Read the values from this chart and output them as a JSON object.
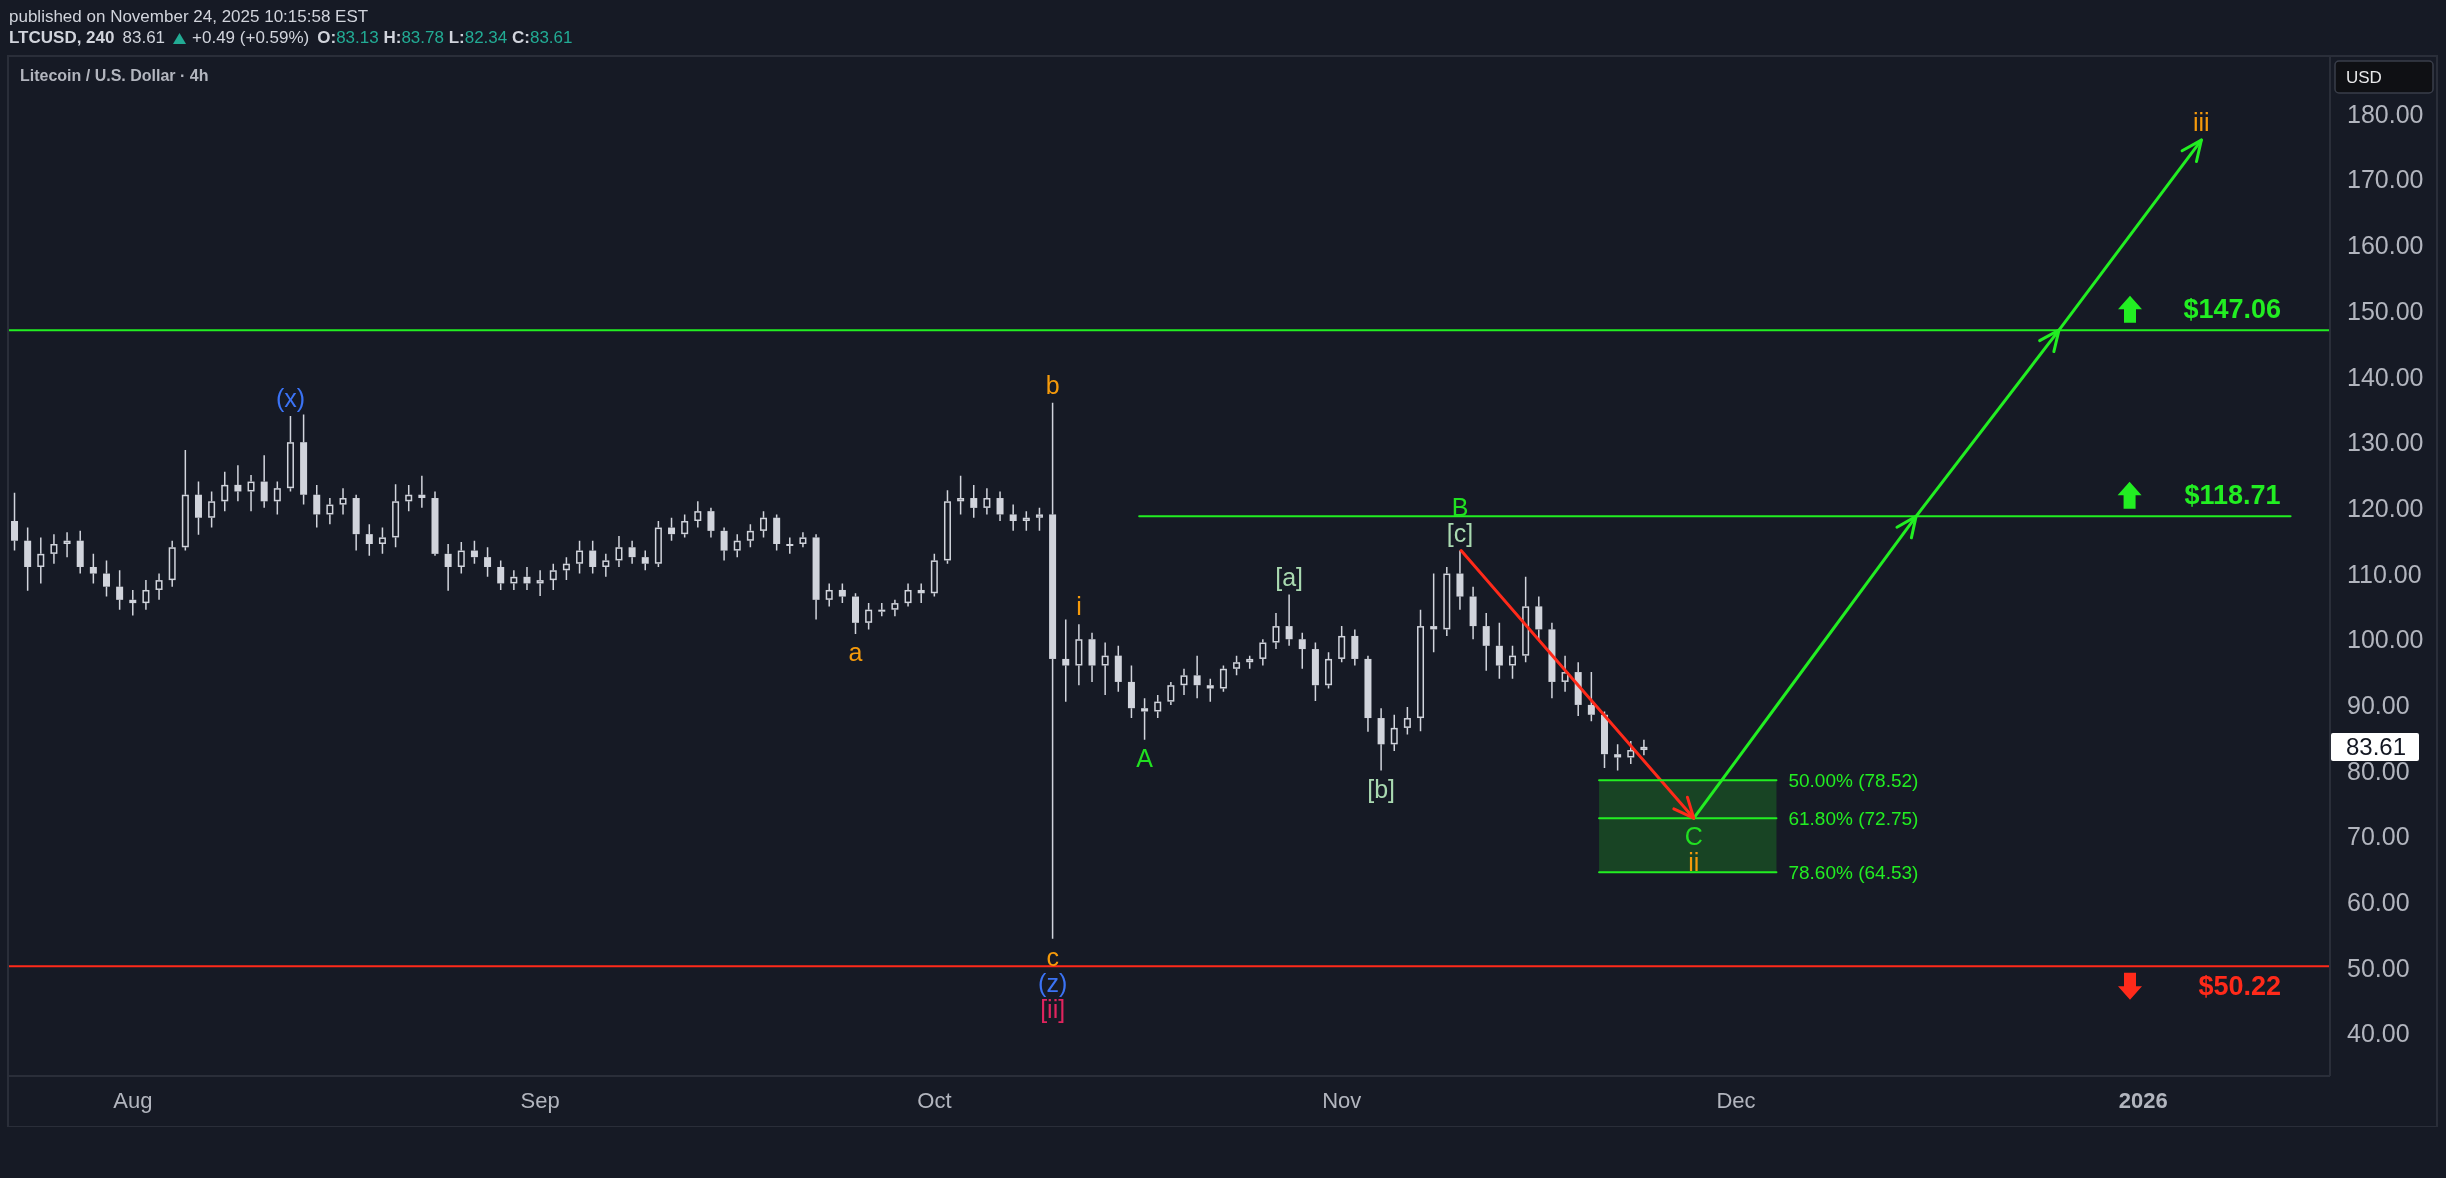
{
  "chart_data": {
    "type": "candlestick",
    "title": "Litecoin / U.S. Dollar · 4h",
    "subtitle": "published on November 24, 2025 10:15:58 EST",
    "ylabel": "USD",
    "color": "#d1d4dc",
    "x": [
      "2025-07-23",
      "2025-07-24",
      "2025-07-25",
      "2025-07-26",
      "2025-07-27",
      "2025-07-28",
      "2025-07-29",
      "2025-07-30",
      "2025-07-31",
      "2025-08-01",
      "2025-08-02",
      "2025-08-03",
      "2025-08-04",
      "2025-08-05",
      "2025-08-06",
      "2025-08-07",
      "2025-08-08",
      "2025-08-09",
      "2025-08-10",
      "2025-08-11",
      "2025-08-12",
      "2025-08-13",
      "2025-08-14",
      "2025-08-15",
      "2025-08-16",
      "2025-08-17",
      "2025-08-18",
      "2025-08-19",
      "2025-08-20",
      "2025-08-21",
      "2025-08-22",
      "2025-08-23",
      "2025-08-24",
      "2025-08-25",
      "2025-08-26",
      "2025-08-27",
      "2025-08-28",
      "2025-08-29",
      "2025-08-30",
      "2025-08-31",
      "2025-09-01",
      "2025-09-02",
      "2025-09-03",
      "2025-09-04",
      "2025-09-05",
      "2025-09-06",
      "2025-09-07",
      "2025-09-08",
      "2025-09-09",
      "2025-09-10",
      "2025-09-11",
      "2025-09-12",
      "2025-09-13",
      "2025-09-14",
      "2025-09-15",
      "2025-09-16",
      "2025-09-17",
      "2025-09-18",
      "2025-09-19",
      "2025-09-20",
      "2025-09-21",
      "2025-09-22",
      "2025-09-23",
      "2025-09-24",
      "2025-09-25",
      "2025-09-26",
      "2025-09-27",
      "2025-09-28",
      "2025-09-29",
      "2025-09-30",
      "2025-10-01",
      "2025-10-02",
      "2025-10-03",
      "2025-10-04",
      "2025-10-05",
      "2025-10-06",
      "2025-10-07",
      "2025-10-08",
      "2025-10-09",
      "2025-10-10",
      "2025-10-11",
      "2025-10-12",
      "2025-10-13",
      "2025-10-14",
      "2025-10-15",
      "2025-10-16",
      "2025-10-17",
      "2025-10-18",
      "2025-10-19",
      "2025-10-20",
      "2025-10-21",
      "2025-10-22",
      "2025-10-23",
      "2025-10-24",
      "2025-10-25",
      "2025-10-26",
      "2025-10-27",
      "2025-10-28",
      "2025-10-29",
      "2025-10-30",
      "2025-10-31",
      "2025-11-01",
      "2025-11-02",
      "2025-11-03",
      "2025-11-04",
      "2025-11-05",
      "2025-11-06",
      "2025-11-07",
      "2025-11-08",
      "2025-11-09",
      "2025-11-10",
      "2025-11-11",
      "2025-11-12",
      "2025-11-13",
      "2025-11-14",
      "2025-11-15",
      "2025-11-16",
      "2025-11-17",
      "2025-11-18",
      "2025-11-19",
      "2025-11-20",
      "2025-11-21",
      "2025-11-22",
      "2025-11-23",
      "2025-11-24"
    ],
    "ohlc": [
      [
        118,
        122.3,
        113.5,
        115
      ],
      [
        115,
        117,
        107.4,
        111
      ],
      [
        111,
        115.5,
        108.5,
        113
      ],
      [
        113,
        116,
        111.5,
        114.5
      ],
      [
        114.5,
        116.3,
        112.5,
        115
      ],
      [
        115,
        116.5,
        110,
        111
      ],
      [
        111,
        113,
        108.5,
        110
      ],
      [
        110,
        112,
        106.5,
        108
      ],
      [
        108,
        110.5,
        104.5,
        106
      ],
      [
        106,
        107.5,
        103.6,
        105.5
      ],
      [
        105.5,
        109,
        104.5,
        107.5
      ],
      [
        107.5,
        110,
        106,
        109
      ],
      [
        109,
        115,
        108,
        114
      ],
      [
        114,
        128.8,
        113.5,
        122
      ],
      [
        122,
        124,
        115.9,
        118.5
      ],
      [
        118.5,
        122.5,
        117,
        121
      ],
      [
        121,
        125.5,
        119.5,
        123.5
      ],
      [
        123.5,
        126.5,
        121,
        122.5
      ],
      [
        122.5,
        125,
        119.5,
        124
      ],
      [
        124,
        128,
        120,
        121
      ],
      [
        121,
        124,
        119,
        123
      ],
      [
        123,
        134,
        122.5,
        130
      ],
      [
        130,
        134.2,
        120.5,
        122
      ],
      [
        122,
        123.5,
        117,
        119
      ],
      [
        119,
        121.5,
        117.5,
        120.5
      ],
      [
        120.5,
        123,
        119,
        121.5
      ],
      [
        121.5,
        122,
        113.5,
        116
      ],
      [
        116,
        117.5,
        112.7,
        114.5
      ],
      [
        114.5,
        117,
        113,
        115.5
      ],
      [
        115.5,
        123.6,
        114,
        121
      ],
      [
        121,
        123.5,
        119.5,
        122
      ],
      [
        122,
        124.9,
        120,
        121.5
      ],
      [
        121.5,
        122.5,
        112.7,
        113
      ],
      [
        113,
        114.5,
        107.4,
        111
      ],
      [
        111,
        114.8,
        110,
        113.5
      ],
      [
        113.5,
        115,
        111.5,
        112.5
      ],
      [
        112.5,
        114,
        109.5,
        111
      ],
      [
        111,
        112,
        107.5,
        108.5
      ],
      [
        108.5,
        110.5,
        107.5,
        109.5
      ],
      [
        109.5,
        111,
        107.5,
        108.5
      ],
      [
        108.5,
        110.5,
        106.6,
        109
      ],
      [
        109,
        111.5,
        107.5,
        110.5
      ],
      [
        110.5,
        112.5,
        109,
        111.5
      ],
      [
        111.5,
        115,
        110,
        113.5
      ],
      [
        113.5,
        115,
        110,
        111
      ],
      [
        111,
        113,
        109.5,
        112
      ],
      [
        112,
        115.7,
        111,
        114
      ],
      [
        114,
        115,
        111.5,
        112.5
      ],
      [
        112.5,
        113.5,
        110.5,
        111.5
      ],
      [
        111.5,
        118,
        111,
        117
      ],
      [
        117,
        118.5,
        115,
        116
      ],
      [
        116,
        119,
        115.5,
        118
      ],
      [
        118,
        121,
        117,
        119.5
      ],
      [
        119.5,
        120,
        115.5,
        116.5
      ],
      [
        116.5,
        117,
        112,
        113.5
      ],
      [
        113.5,
        116,
        112.5,
        115
      ],
      [
        115,
        117.5,
        114,
        116.5
      ],
      [
        116.5,
        119.5,
        115.5,
        118.5
      ],
      [
        118.5,
        119,
        113.5,
        114.5
      ],
      [
        114.5,
        115.5,
        113,
        114.5
      ],
      [
        114.5,
        116.3,
        114,
        115.5
      ],
      [
        115.5,
        116,
        103,
        106
      ],
      [
        106,
        108.5,
        105,
        107.5
      ],
      [
        107.5,
        108.5,
        105.5,
        106.5
      ],
      [
        106.5,
        107,
        100.8,
        102.5
      ],
      [
        102.5,
        105.5,
        101.5,
        104.5
      ],
      [
        104.5,
        105.5,
        103.5,
        104.5
      ],
      [
        104.5,
        106,
        103.5,
        105.5
      ],
      [
        105.5,
        108.5,
        105,
        107.5
      ],
      [
        107.5,
        108.5,
        105.5,
        107
      ],
      [
        107,
        113,
        106.5,
        112
      ],
      [
        112,
        122.7,
        111.5,
        121
      ],
      [
        121,
        124.9,
        119,
        121.5
      ],
      [
        121.5,
        123.5,
        118.5,
        120
      ],
      [
        120,
        123,
        119,
        121.5
      ],
      [
        121.5,
        122.5,
        118,
        119
      ],
      [
        119,
        120.5,
        116.5,
        118
      ],
      [
        118,
        119.5,
        116.5,
        118.5
      ],
      [
        118.5,
        120,
        116.5,
        119
      ],
      [
        119,
        136,
        54.4,
        97
      ],
      [
        97,
        103,
        90.5,
        96
      ],
      [
        96,
        102.3,
        93,
        100
      ],
      [
        100,
        101,
        93.5,
        96
      ],
      [
        96,
        99.5,
        91.5,
        97.5
      ],
      [
        97.5,
        99,
        92,
        93.5
      ],
      [
        93.5,
        96,
        88,
        89.5
      ],
      [
        89.5,
        91,
        84.7,
        89
      ],
      [
        89,
        91.5,
        88,
        90.5
      ],
      [
        90.5,
        93.5,
        90,
        93
      ],
      [
        93,
        95.5,
        91.5,
        94.5
      ],
      [
        94.5,
        97.5,
        91,
        93
      ],
      [
        93,
        94,
        90.5,
        92.5
      ],
      [
        92.5,
        96,
        92,
        95.5
      ],
      [
        95.5,
        97.5,
        94.5,
        96.5
      ],
      [
        96.5,
        97.5,
        95.5,
        97
      ],
      [
        97,
        100,
        96,
        99.5
      ],
      [
        99.5,
        104,
        98.5,
        102
      ],
      [
        102,
        106.8,
        99,
        100
      ],
      [
        100,
        101,
        95.5,
        98.5
      ],
      [
        98.5,
        99.5,
        90.6,
        93
      ],
      [
        93,
        98,
        92.5,
        97
      ],
      [
        97,
        102,
        96.5,
        100.5
      ],
      [
        100.5,
        101.5,
        96,
        97
      ],
      [
        97,
        97.5,
        85.9,
        88
      ],
      [
        88,
        89.5,
        80,
        84
      ],
      [
        84,
        88.5,
        83,
        86.5
      ],
      [
        86.5,
        89.7,
        85.5,
        88
      ],
      [
        88,
        104.5,
        86,
        102
      ],
      [
        102,
        110,
        98,
        101.5
      ],
      [
        101.5,
        111,
        100.5,
        110
      ],
      [
        110,
        113.5,
        104.5,
        106.5
      ],
      [
        106.5,
        108,
        100,
        102
      ],
      [
        102,
        104,
        95.2,
        99
      ],
      [
        99,
        102.5,
        94,
        96
      ],
      [
        96,
        99,
        94,
        97.5
      ],
      [
        97.5,
        109.5,
        96.5,
        105
      ],
      [
        105,
        106.5,
        100,
        101.5
      ],
      [
        101.5,
        102.5,
        91,
        93.5
      ],
      [
        93.5,
        97.5,
        92,
        95
      ],
      [
        95,
        96.5,
        88.3,
        90
      ],
      [
        90,
        95,
        87.5,
        88.5
      ],
      [
        88.5,
        89,
        80.4,
        82.5
      ],
      [
        82.5,
        84,
        80,
        82
      ],
      [
        82,
        84.5,
        81,
        83.13
      ],
      [
        83.13,
        84.7,
        82.34,
        83.61
      ]
    ],
    "series": [
      {
        "type": "line",
        "color": "#ff2a1a",
        "x": [
          "2025-11-10T02:00",
          "2025-11-27T19:00"
        ],
        "values": [
          113.5,
          72.75
        ]
      },
      {
        "type": "line",
        "color": "#22ee22",
        "x": [
          "2025-11-27T19:00",
          "2025-12-14T17:00",
          "2025-12-25T14:00",
          "2026-01-05T10:00"
        ],
        "values": [
          72.75,
          118.71,
          147.06,
          176
        ]
      },
      {
        "type": "line",
        "name": "$118.71",
        "color": "#22ee22",
        "x": [
          "2025-10-16T14:00",
          "2026-01-12T05:00"
        ],
        "values": [
          118.71,
          118.71
        ]
      },
      {
        "type": "line",
        "name": "50.00% (78.52)",
        "color": "#22ee22",
        "x": [
          "2025-11-20T14:00",
          "2025-12-04T02:00"
        ],
        "values": [
          78.52,
          78.52
        ]
      },
      {
        "type": "line",
        "name": "61.80% (72.75)",
        "color": "#22ee22",
        "x": [
          "2025-11-20T14:00",
          "2025-12-04T02:00"
        ],
        "values": [
          72.75,
          72.75
        ],
        "lower": [
          64.53,
          64.53
        ],
        "upper": [
          78.52,
          78.52
        ]
      },
      {
        "type": "line",
        "name": "78.60% (64.53)",
        "color": "#22ee22",
        "x": [
          "2025-11-20T14:00",
          "2025-12-04T02:00"
        ],
        "values": [
          64.53,
          64.53
        ]
      }
    ],
    "ref_lines": [
      {
        "axis": "y",
        "value": 147.06,
        "label": "$147.06",
        "color": "#22ee22"
      },
      {
        "axis": "y",
        "value": 50.22,
        "label": "$50.22",
        "color": "#ff2a1a"
      }
    ],
    "xlim": [
      "2025-07-22T12:00",
      "2026-01-15T05:00"
    ],
    "xticks": [
      {
        "value": "2025-08-01",
        "label": "Aug"
      },
      {
        "value": "2025-09-01",
        "label": "Sep"
      },
      {
        "value": "2025-10-01",
        "label": "Oct"
      },
      {
        "value": "2025-11-01",
        "label": "Nov"
      },
      {
        "value": "2025-12-01",
        "label": "Dec"
      },
      {
        "value": "2026-01-01",
        "label": "2026"
      }
    ],
    "ylim": [
      33.5,
      188.8
    ],
    "yticks": [
      {
        "value": 40,
        "label": "40.00"
      },
      {
        "value": 50,
        "label": "50.00"
      },
      {
        "value": 60,
        "label": "60.00"
      },
      {
        "value": 70,
        "label": "70.00"
      },
      {
        "value": 80,
        "label": "80.00"
      },
      {
        "value": 90,
        "label": "90.00"
      },
      {
        "value": 100,
        "label": "100.00"
      },
      {
        "value": 110,
        "label": "110.00"
      },
      {
        "value": 120,
        "label": "120.00"
      },
      {
        "value": 130,
        "label": "130.00"
      },
      {
        "value": 140,
        "label": "140.00"
      },
      {
        "value": 150,
        "label": "150.00"
      },
      {
        "value": 160,
        "label": "160.00"
      },
      {
        "value": 170,
        "label": "170.00"
      },
      {
        "value": 180,
        "label": "180.00"
      }
    ],
    "annotations": [
      "LTCUSD, 240",
      "83.61",
      "+0.49 (+0.59%)",
      "O:83.13 H:83.78 L:82.34 C:83.61",
      {
        "text": "(x)",
        "x": "2025-08-13",
        "y": 134
      },
      {
        "text": "a",
        "x": "2025-09-25",
        "y": 100.8
      },
      {
        "text": "b",
        "x": "2025-10-10",
        "y": 136
      },
      {
        "text": "c",
        "x": "2025-10-10",
        "y": 54.4
      },
      {
        "text": "(z)",
        "x": "2025-10-10",
        "y": 54.4
      },
      {
        "text": "[ii]",
        "x": "2025-10-10",
        "y": 54.4
      },
      {
        "text": "i",
        "x": "2025-10-12",
        "y": 102.3
      },
      {
        "text": "A",
        "x": "2025-10-17",
        "y": 84.7
      },
      {
        "text": "[a]",
        "x": "2025-10-28",
        "y": 106.8
      },
      {
        "text": "[b]",
        "x": "2025-11-04",
        "y": 80
      },
      {
        "text": "[c]",
        "x": "2025-11-10",
        "y": 113.5
      },
      {
        "text": "B",
        "x": "2025-11-10",
        "y": 113.5
      },
      {
        "text": "C",
        "x": "2025-11-27T19:00",
        "y": 72.75
      },
      {
        "text": "ii",
        "x": "2025-11-27T19:00",
        "y": 72.75
      },
      {
        "text": "iii",
        "x": "2026-01-05T10:00",
        "y": 176
      }
    ]
  }
}
